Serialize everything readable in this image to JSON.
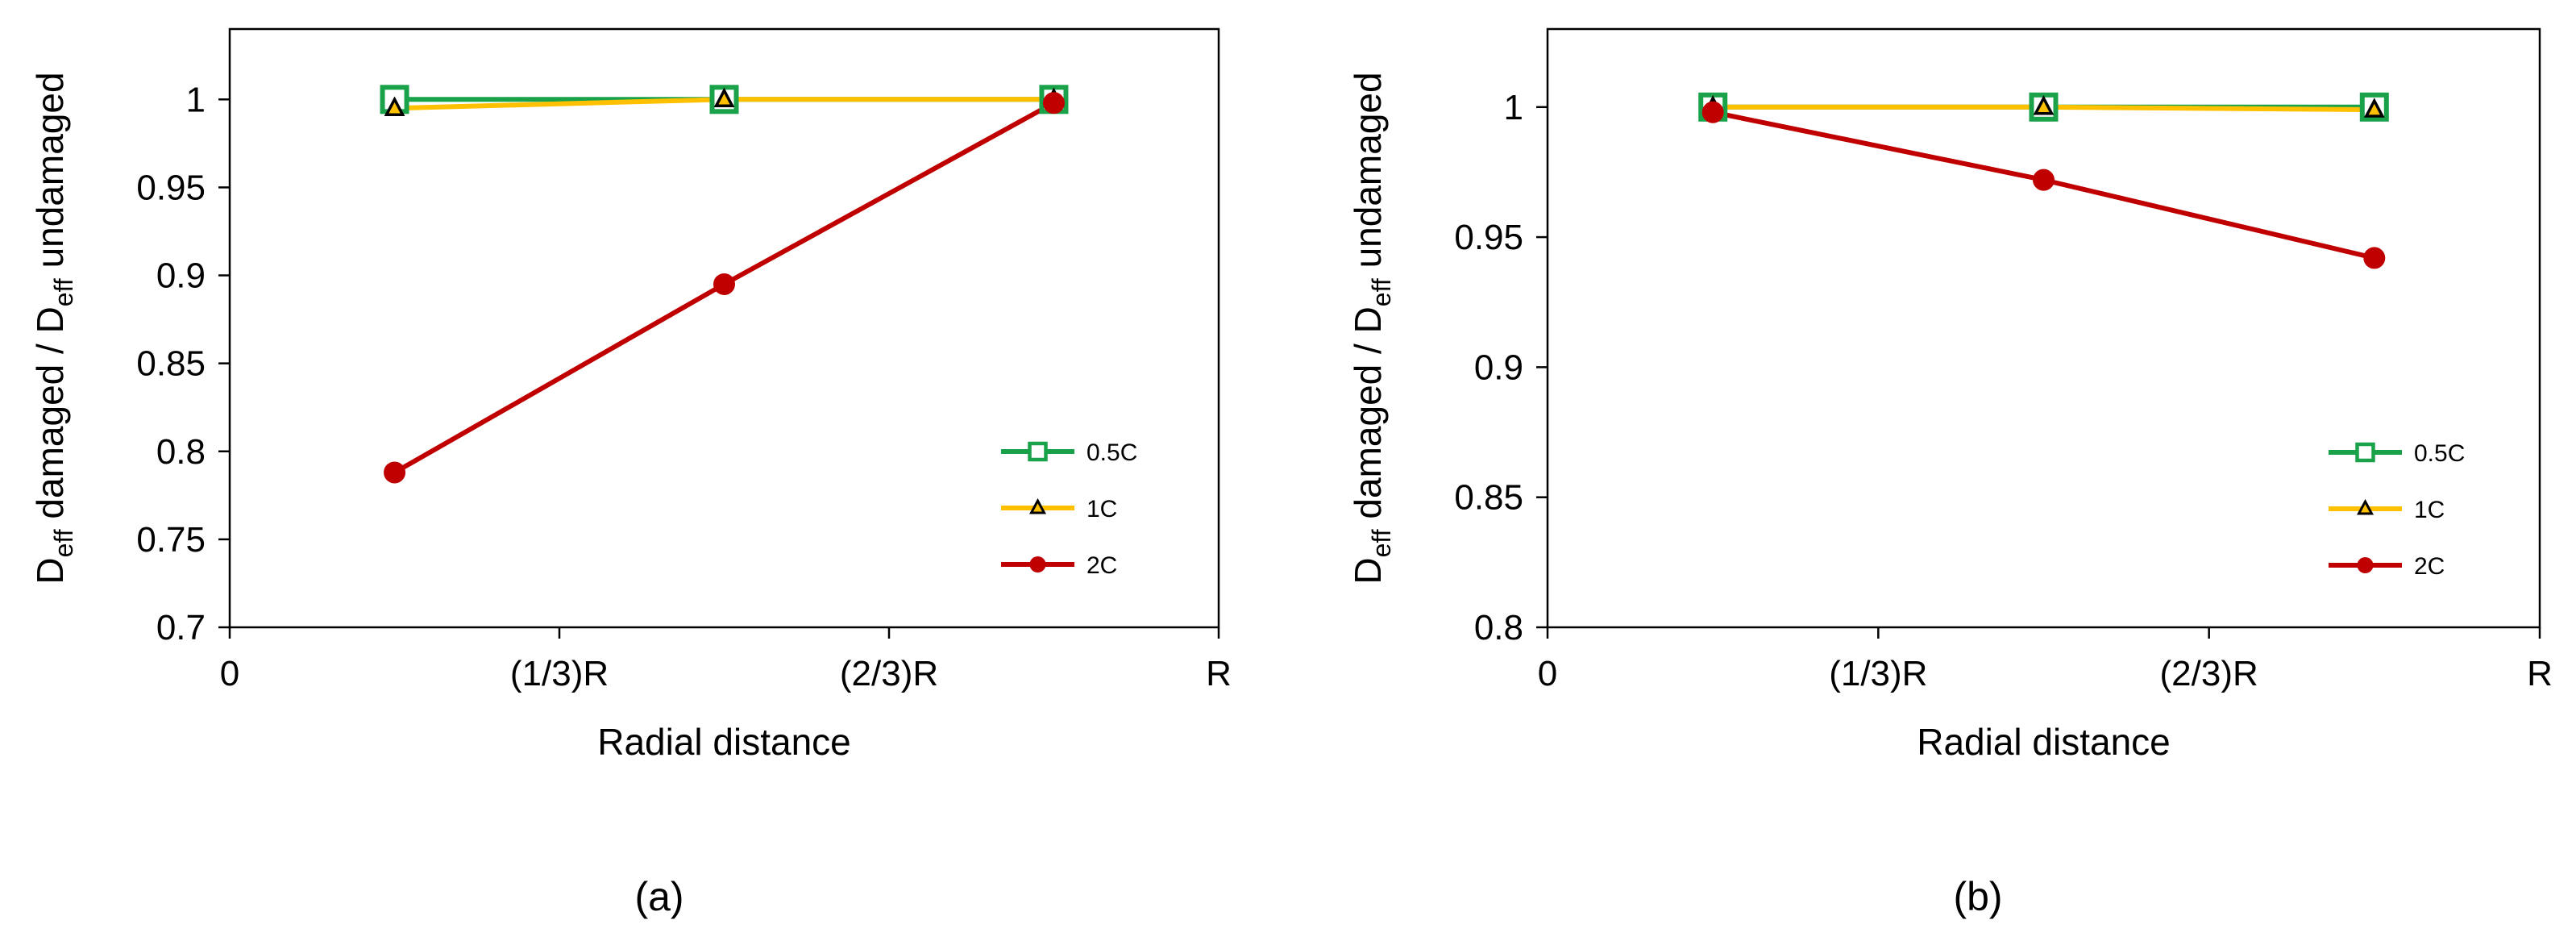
{
  "colors": {
    "c05": "#1aa24a",
    "c1": "#ffc000",
    "c2": "#c00000",
    "axis": "#000000"
  },
  "chart_data": [
    {
      "type": "line",
      "caption": "(a)",
      "xlabel": "Radial distance",
      "ylabel_parts": [
        "D",
        "eff",
        " damaged / D",
        "eff",
        " undamaged"
      ],
      "x_ticks": [
        "0",
        "(1/3)R",
        "(2/3)R",
        "R"
      ],
      "xlim": [
        0,
        1
      ],
      "ylim": [
        0.7,
        1.04
      ],
      "y_ticks": [
        "0.7",
        "0.75",
        "0.8",
        "0.85",
        "0.9",
        "0.95",
        "1"
      ],
      "x": [
        0.1667,
        0.5,
        0.8333
      ],
      "legend_position": "bottom-right",
      "series": [
        {
          "name": "0.5C",
          "marker": "square",
          "color_key": "c05",
          "values": [
            1.0,
            1.0,
            1.0
          ]
        },
        {
          "name": "1C",
          "marker": "triangle",
          "color_key": "c1",
          "values": [
            0.995,
            1.0,
            1.0
          ]
        },
        {
          "name": "2C",
          "marker": "circle",
          "color_key": "c2",
          "values": [
            0.788,
            0.895,
            0.998
          ]
        }
      ]
    },
    {
      "type": "line",
      "caption": "(b)",
      "xlabel": "Radial distance",
      "ylabel_parts": [
        "D",
        "eff",
        " damaged / D",
        "eff",
        " undamaged"
      ],
      "x_ticks": [
        "0",
        "(1/3)R",
        "(2/3)R",
        "R"
      ],
      "xlim": [
        0,
        1
      ],
      "ylim": [
        0.8,
        1.03
      ],
      "y_ticks": [
        "0.8",
        "0.85",
        "0.9",
        "0.95",
        "1"
      ],
      "x": [
        0.1667,
        0.5,
        0.8333
      ],
      "legend_position": "bottom-right",
      "series": [
        {
          "name": "0.5C",
          "marker": "square",
          "color_key": "c05",
          "values": [
            1.0,
            1.0,
            1.0
          ]
        },
        {
          "name": "1C",
          "marker": "triangle",
          "color_key": "c1",
          "values": [
            1.0,
            1.0,
            0.999
          ]
        },
        {
          "name": "2C",
          "marker": "circle",
          "color_key": "c2",
          "values": [
            0.998,
            0.972,
            0.942
          ]
        }
      ]
    }
  ]
}
